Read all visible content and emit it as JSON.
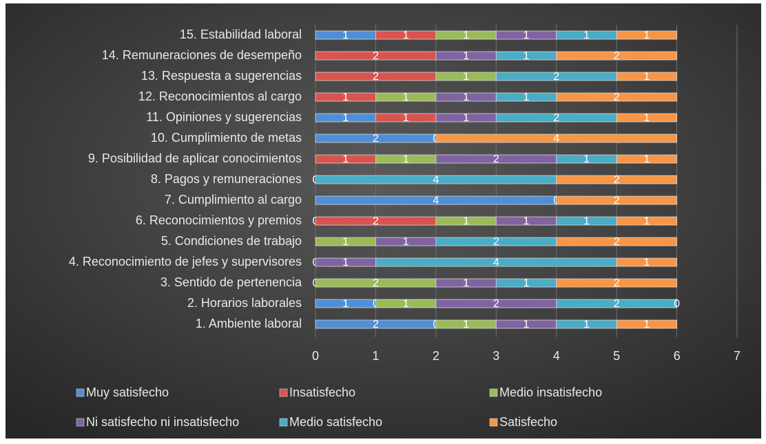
{
  "chart_data": {
    "type": "stacked-bar-horizontal",
    "categories": [
      "1. Ambiente laboral",
      "2. Horarios laborales",
      "3. Sentido de pertenencia",
      "4. Reconocimiento de jefes y supervisores",
      "5. Condiciones de trabajo",
      "6. Reconocimientos y premios",
      "7. Cumplimiento al cargo",
      "8. Pagos y remuneraciones",
      "9. Posibilidad de aplicar conocimientos",
      "10. Cumplimiento de metas",
      "11. Opiniones y sugerencias",
      "12. Reconocimientos al cargo",
      "13. Respuesta a sugerencias",
      "14. Remuneraciones de desempeño",
      "15. Estabilidad laboral"
    ],
    "series": [
      {
        "name": "Muy satisfecho",
        "color": "#4f8fd6",
        "values": [
          2,
          1,
          0,
          0,
          null,
          0,
          4,
          0,
          null,
          2,
          1,
          null,
          null,
          null,
          1
        ]
      },
      {
        "name": "Insatisfecho",
        "color": "#d9534f",
        "values": [
          0,
          0,
          null,
          null,
          null,
          2,
          null,
          null,
          1,
          null,
          1,
          1,
          2,
          2,
          1
        ]
      },
      {
        "name": "Medio insatisfecho",
        "color": "#9bbb59",
        "values": [
          1,
          1,
          2,
          null,
          1,
          1,
          null,
          null,
          1,
          null,
          null,
          1,
          1,
          null,
          1
        ]
      },
      {
        "name": "Ni satisfecho ni insatisfecho",
        "color": "#8064a2",
        "values": [
          1,
          2,
          1,
          1,
          1,
          1,
          null,
          null,
          2,
          null,
          1,
          1,
          null,
          1,
          1
        ]
      },
      {
        "name": "Medio satisfecho",
        "color": "#4bacc6",
        "values": [
          1,
          2,
          1,
          4,
          2,
          1,
          0,
          4,
          1,
          0,
          2,
          1,
          2,
          1,
          1
        ]
      },
      {
        "name": "Satisfecho",
        "color": "#f79646",
        "values": [
          1,
          0,
          2,
          1,
          2,
          1,
          2,
          2,
          1,
          4,
          1,
          2,
          1,
          2,
          1
        ]
      }
    ],
    "xlim": [
      0,
      7
    ],
    "xticks": [
      0,
      1,
      2,
      3,
      4,
      5,
      6,
      7
    ],
    "grid": true,
    "legend": "bottom",
    "data_labels": true
  }
}
